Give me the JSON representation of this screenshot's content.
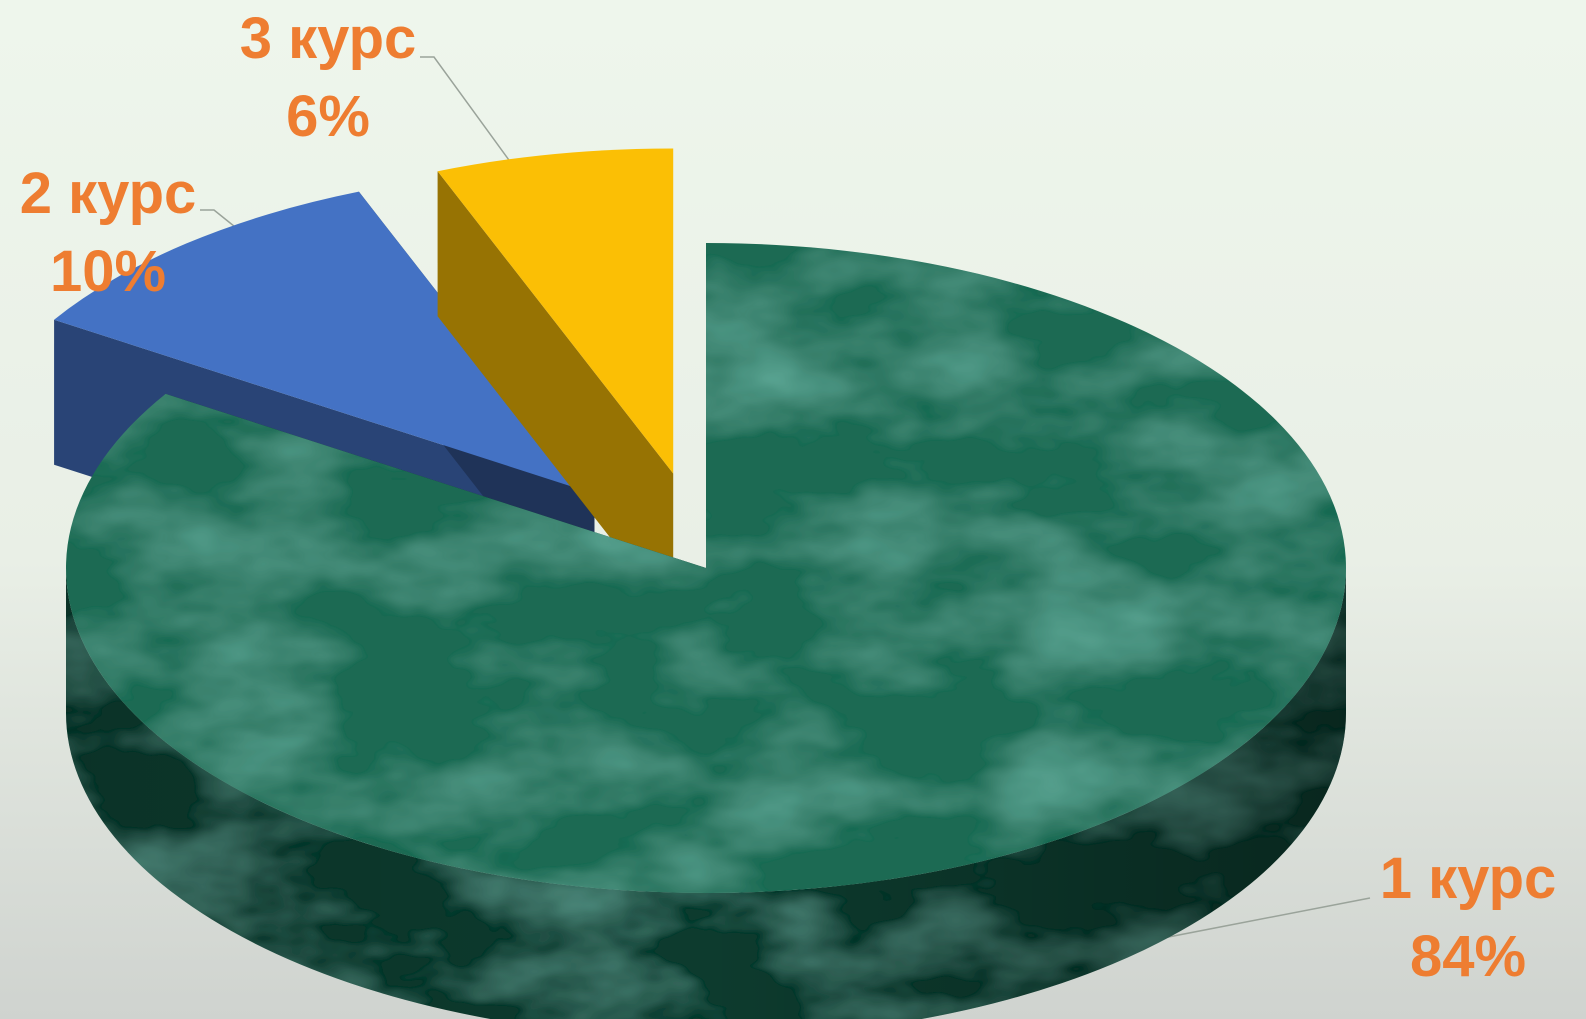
{
  "chart_data": {
    "type": "pie",
    "title": "",
    "slices": [
      {
        "label": "1 курс",
        "value": 84,
        "display": "84%",
        "color": "#1f6b53",
        "exploded": false
      },
      {
        "label": "2 курс",
        "value": 10,
        "display": "10%",
        "color": "#4472c4",
        "exploded": true
      },
      {
        "label": "3 курс",
        "value": 6,
        "display": "6%",
        "color": "#fbbf05",
        "exploded": true
      }
    ],
    "label_color": "#ee7d31",
    "legend": "none",
    "style": "3d"
  }
}
